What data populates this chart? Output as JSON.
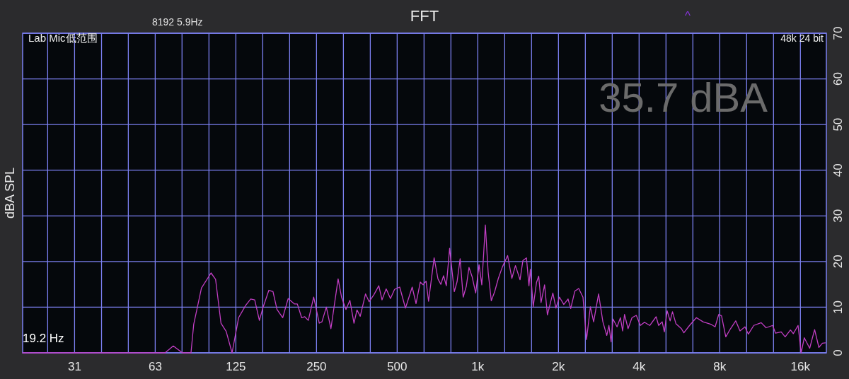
{
  "chart_data": {
    "type": "line",
    "title": "FFT",
    "ylabel": "dBA SPL",
    "annotations": [
      "8192  5.9Hz",
      "Lab Mic低范围",
      "48k 24 bit",
      "35.7 dBA",
      "19.2 Hz",
      "^"
    ],
    "log": "x",
    "grid": true,
    "xlim": [
      20,
      20000
    ],
    "ylim": [
      0,
      70
    ],
    "yticks": [
      0,
      10,
      20,
      30,
      40,
      50,
      60,
      70
    ],
    "xticks": [
      {
        "value": 24.8,
        "label": null
      },
      {
        "value": 31.25,
        "label": "31"
      },
      {
        "value": 39.4,
        "label": null
      },
      {
        "value": 49.6,
        "label": null
      },
      {
        "value": 62.5,
        "label": "63"
      },
      {
        "value": 78.7,
        "label": null
      },
      {
        "value": 99.2,
        "label": null
      },
      125,
      {
        "value": 157.5,
        "label": null
      },
      {
        "value": 198.4,
        "label": null
      },
      250,
      {
        "value": 315,
        "label": null
      },
      {
        "value": 396.9,
        "label": null
      },
      500,
      {
        "value": 630,
        "label": null
      },
      {
        "value": 793.7,
        "label": null
      },
      {
        "value": 1000,
        "label": "1k"
      },
      {
        "value": 1260,
        "label": null
      },
      {
        "value": 1587,
        "label": null
      },
      {
        "value": 2000,
        "label": "2k"
      },
      {
        "value": 2520,
        "label": null
      },
      {
        "value": 3175,
        "label": null
      },
      {
        "value": 4000,
        "label": "4k"
      },
      {
        "value": 5040,
        "label": null
      },
      {
        "value": 6350,
        "label": null
      },
      {
        "value": 8000,
        "label": "8k"
      },
      {
        "value": 10079,
        "label": null
      },
      {
        "value": 12699,
        "label": null
      },
      {
        "value": 16000,
        "label": "16k"
      }
    ],
    "x": [
      20,
      68,
      73,
      79,
      85,
      87,
      93,
      101,
      105,
      110,
      115,
      121,
      128,
      136,
      142,
      147,
      153,
      158,
      166,
      172,
      178,
      187,
      196,
      207,
      212,
      220,
      226,
      233,
      244,
      256,
      262,
      272,
      283,
      301,
      310,
      322,
      333,
      345,
      354,
      364,
      381,
      393,
      410,
      427,
      439,
      455,
      472,
      489,
      511,
      537,
      569,
      588,
      610,
      625,
      641,
      655,
      687,
      710,
      728,
      745,
      763,
      785,
      817,
      837,
      859,
      882,
      906,
      927,
      953,
      982,
      1011,
      1035,
      1067,
      1093,
      1123,
      1156,
      1193,
      1235,
      1292,
      1340,
      1382,
      1438,
      1473,
      1519,
      1552,
      1571,
      1610,
      1656,
      1688,
      1722,
      1775,
      1819,
      1906,
      1957,
      2018,
      2094,
      2172,
      2222,
      2302,
      2380,
      2469,
      2546,
      2631,
      2706,
      2824,
      2930,
      3030,
      3086,
      3145,
      3197,
      3310,
      3407,
      3472,
      3529,
      3638,
      3763,
      3904,
      4045,
      4188,
      4383,
      4630,
      4731,
      4877,
      4971,
      5091,
      5223,
      5329,
      5488,
      5751,
      5876,
      6172,
      6544,
      6930,
      7449,
      7689,
      7928,
      8123,
      8427,
      8779,
      9177,
      9521,
      9937,
      10226,
      10718,
      11424,
      11912,
      12606,
      12923,
      13566,
      14036,
      14691,
      15053,
      15683,
      16100,
      16545,
      17328,
      18080,
      18754,
      19333,
      19810
    ],
    "series": [
      {
        "color": "#c23ec4",
        "values": [
          0,
          0,
          1.5,
          0,
          0,
          6.2,
          14.2,
          17.5,
          16.1,
          6.5,
          4.7,
          0,
          7.7,
          10.4,
          11.8,
          11.6,
          7.1,
          10,
          13.7,
          13.4,
          9.5,
          7.7,
          11.9,
          10.7,
          10.7,
          7.7,
          7.9,
          7.1,
          12.2,
          6.5,
          6.8,
          10,
          5.3,
          16.2,
          12.2,
          9.5,
          11.5,
          6.5,
          9.4,
          8,
          12.9,
          11.2,
          12.8,
          14.7,
          11.6,
          14,
          11.9,
          13.9,
          14.4,
          9.8,
          14.4,
          10.8,
          15.5,
          14.9,
          15.7,
          11.3,
          20.8,
          16.2,
          15,
          16.9,
          14.7,
          22.9,
          13.4,
          15.6,
          20.6,
          12.2,
          14.6,
          18.7,
          16.6,
          13.1,
          19.3,
          14.9,
          28,
          17.7,
          11.4,
          13.4,
          16.3,
          18.8,
          21.3,
          16.3,
          19.1,
          16,
          20.2,
          20.8,
          14.7,
          18.3,
          10.1,
          15.4,
          16.8,
          11,
          14.9,
          8.3,
          13.1,
          9.8,
          12.2,
          10.6,
          11.8,
          9.7,
          13.5,
          14.1,
          12.2,
          2.9,
          10.1,
          6.8,
          12.9,
          6.8,
          3.8,
          6,
          2.4,
          7.4,
          5.7,
          7.7,
          4.8,
          8.4,
          5.3,
          7.7,
          8.2,
          6,
          6.7,
          6,
          7.9,
          6,
          6.8,
          4.6,
          9.2,
          7,
          9,
          6.4,
          5.3,
          4.4,
          6,
          7.7,
          6.8,
          6.2,
          5.7,
          8.4,
          8.1,
          3.5,
          5.3,
          7,
          4.8,
          5.7,
          4.1,
          6,
          6.6,
          5.5,
          6,
          4.3,
          4.6,
          3.5,
          5,
          4.2,
          6,
          0,
          3.3,
          1,
          5.1,
          1.2,
          2.1,
          2.2
        ]
      }
    ]
  }
}
